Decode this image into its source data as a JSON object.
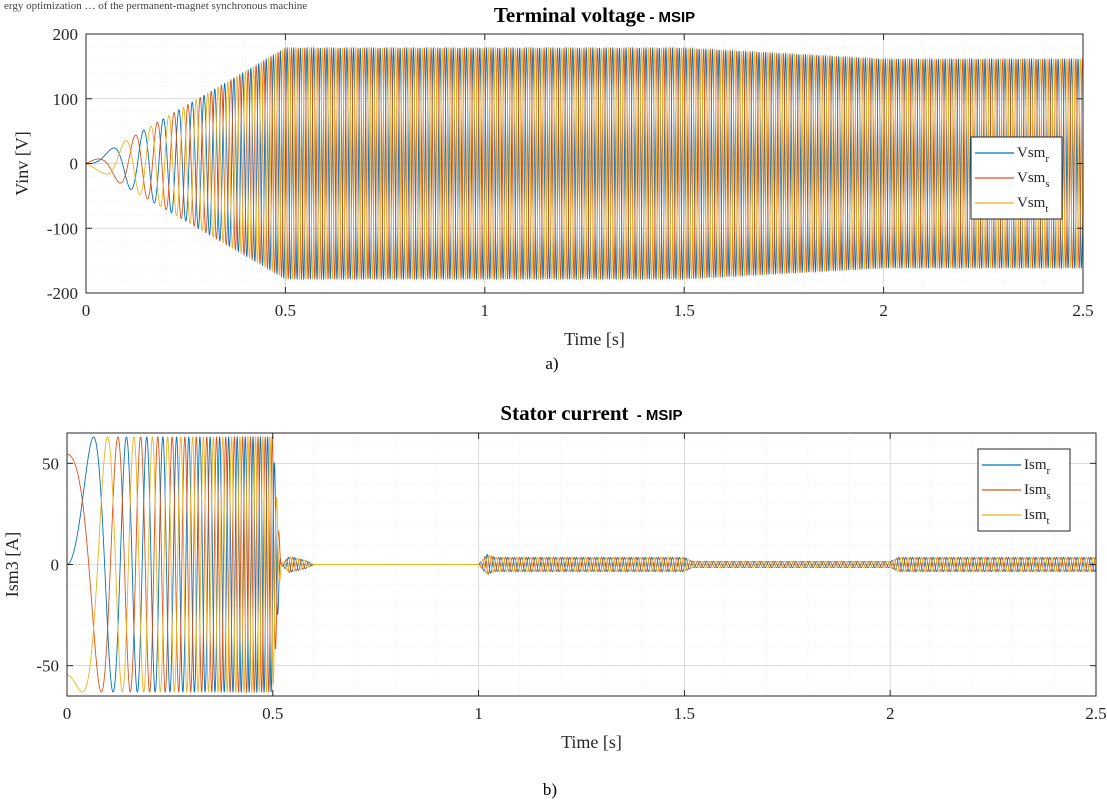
{
  "header_text": "ergy optimization … of the permanent-magnet synchronous machine",
  "chart_data": [
    {
      "type": "line",
      "title": "Terminal voltage",
      "subtitle": "- MSIP",
      "xlabel": "Time [s]",
      "ylabel": "Vinv [V]",
      "xlim": [
        0,
        2.5
      ],
      "ylim": [
        -200,
        200
      ],
      "xticks": [
        "0",
        "0.5",
        "1",
        "1.5",
        "2",
        "2.5"
      ],
      "yticks": [
        "-200",
        "-100",
        "0",
        "100",
        "200"
      ],
      "grid": true,
      "legend_position": "right",
      "caption": "a)",
      "series": [
        {
          "name": "Vsm",
          "sub": "r",
          "color": "#0072BD",
          "phase": 0
        },
        {
          "name": "Vsm",
          "sub": "s",
          "color": "#D95319",
          "phase": 2.094
        },
        {
          "name": "Vsm",
          "sub": "t",
          "color": "#EDB120",
          "phase": 4.189
        }
      ],
      "envelope": [
        [
          0,
          0
        ],
        [
          0.5,
          178
        ],
        [
          1.5,
          178
        ],
        [
          2.0,
          161
        ],
        [
          2.5,
          161
        ]
      ],
      "frequency_profile_hz": [
        [
          0,
          0
        ],
        [
          0.5,
          60
        ],
        [
          2.5,
          60
        ]
      ]
    },
    {
      "type": "line",
      "title": "Stator current",
      "subtitle": " - MSIP",
      "xlabel": "Time [s]",
      "ylabel": "Ism3 [A]",
      "xlim": [
        0,
        2.5
      ],
      "ylim": [
        -65,
        65
      ],
      "xticks": [
        "0",
        "0.5",
        "1",
        "1.5",
        "2",
        "2.5"
      ],
      "yticks": [
        "-50",
        "0",
        "50"
      ],
      "grid": true,
      "legend_position": "top-right",
      "caption": "b)",
      "series": [
        {
          "name": "Ism",
          "sub": "r",
          "color": "#0072BD",
          "phase": 0
        },
        {
          "name": "Ism",
          "sub": "s",
          "color": "#D95319",
          "phase": 2.094
        },
        {
          "name": "Ism",
          "sub": "t",
          "color": "#EDB120",
          "phase": 4.189
        }
      ],
      "envelope": [
        [
          0,
          63
        ],
        [
          0.5,
          63
        ],
        [
          0.52,
          0
        ],
        [
          0.54,
          4
        ],
        [
          0.58,
          2
        ],
        [
          0.6,
          0
        ],
        [
          1.0,
          0
        ],
        [
          1.02,
          5
        ],
        [
          1.04,
          3.5
        ],
        [
          1.5,
          3.5
        ],
        [
          1.52,
          1.5
        ],
        [
          2.0,
          1.5
        ],
        [
          2.02,
          3.5
        ],
        [
          2.5,
          3.5
        ]
      ],
      "frequency_profile_hz": [
        [
          0,
          0
        ],
        [
          0.5,
          60
        ],
        [
          2.5,
          60
        ]
      ]
    }
  ]
}
